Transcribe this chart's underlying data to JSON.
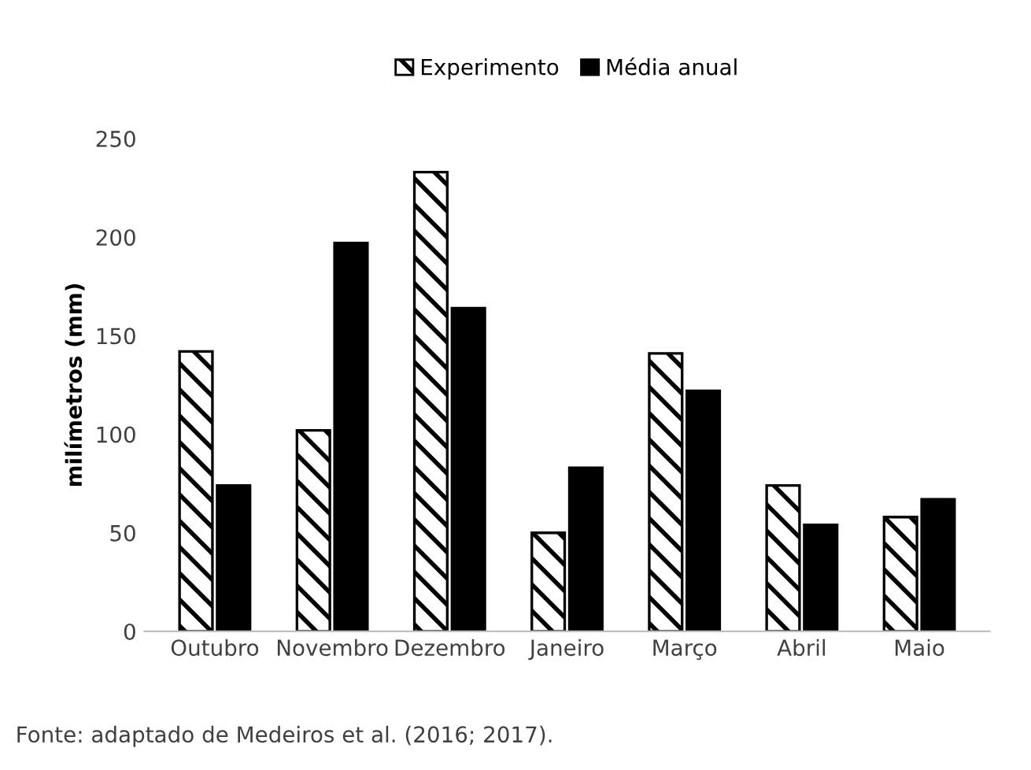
{
  "chart_data": {
    "type": "bar",
    "ylabel": "milímetros (mm)",
    "categories": [
      "Outubro",
      "Novembro",
      "Dezembro",
      "Janeiro",
      "Março",
      "Abril",
      "Maio"
    ],
    "series": [
      {
        "name": "Experimento",
        "color": "#ffffff",
        "values": [
          142,
          102,
          233,
          50,
          141,
          74,
          58
        ]
      },
      {
        "name": "Média anual",
        "color": "#000000",
        "values": [
          74,
          197,
          164,
          83,
          122,
          54,
          67
        ]
      }
    ],
    "ylim": [
      0,
      250
    ],
    "yticks": [
      0,
      50,
      100,
      150,
      200,
      250
    ],
    "grid": false,
    "legend": "top",
    "annotations": [
      "Fonte: adaptado de Medeiros et al. (2016; 2017)."
    ]
  }
}
